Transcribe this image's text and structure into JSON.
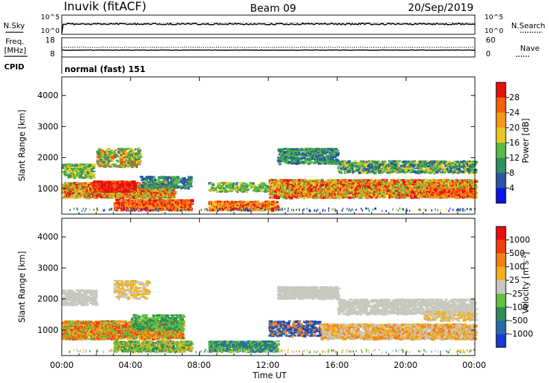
{
  "header": {
    "station": "Inuvik (fitACF)",
    "beam": "Beam 09",
    "date": "20/Sep/2019"
  },
  "noise_panel": {
    "left_label": "N.Sky",
    "left_ticks": [
      "10^5",
      "10^0"
    ],
    "right_label": "N.Search",
    "right_ticks": [
      "10^5",
      "10^0"
    ]
  },
  "freq_panel": {
    "left_label_1": "Freq.",
    "left_label_2": "[MHz]",
    "left_ticks": [
      "18",
      "8"
    ],
    "right_label": "Nave",
    "right_ticks": [
      "60",
      "0"
    ]
  },
  "cpid": {
    "label": "CPID",
    "value": "normal (fast) 151"
  },
  "x_axis": {
    "label": "Time UT",
    "ticks": [
      "00:00",
      "04:00",
      "08:00",
      "12:00",
      "16:00",
      "20:00",
      "00:00"
    ]
  },
  "chart_data": [
    {
      "type": "heatmap",
      "title": "",
      "ylabel": "Slant Range [km]",
      "xlabel": "Time UT",
      "x_range_hours": [
        0,
        24
      ],
      "ylim": [
        180,
        4600
      ],
      "y_ticks": [
        1000,
        2000,
        3000,
        4000
      ],
      "colorbar_label": "Power [dB]",
      "colorbar_ticks": [
        "4",
        "8",
        "12",
        "16",
        "20",
        "24",
        "28"
      ],
      "colorbar_colors": [
        "#0a14e6",
        "#2a55a5",
        "#2f8f60",
        "#58b848",
        "#e8c820",
        "#f59818",
        "#f06010",
        "#e81010"
      ]
    },
    {
      "type": "heatmap",
      "title": "",
      "ylabel": "Slant Range [km]",
      "xlabel": "Time UT",
      "x_range_hours": [
        0,
        24
      ],
      "ylim": [
        180,
        4600
      ],
      "y_ticks": [
        1000,
        2000,
        3000,
        4000
      ],
      "colorbar_label": "Velocity [m s-1]",
      "colorbar_ticks": [
        "1000",
        "500",
        "100",
        "25",
        "-25",
        "-100",
        "-500",
        "-1000"
      ],
      "colorbar_colors": [
        "#1a3ad0",
        "#2a6aa8",
        "#2e8c5a",
        "#62c040",
        "#c8c8c0",
        "#f0b020",
        "#f08018",
        "#f04010",
        "#e81010"
      ]
    }
  ]
}
